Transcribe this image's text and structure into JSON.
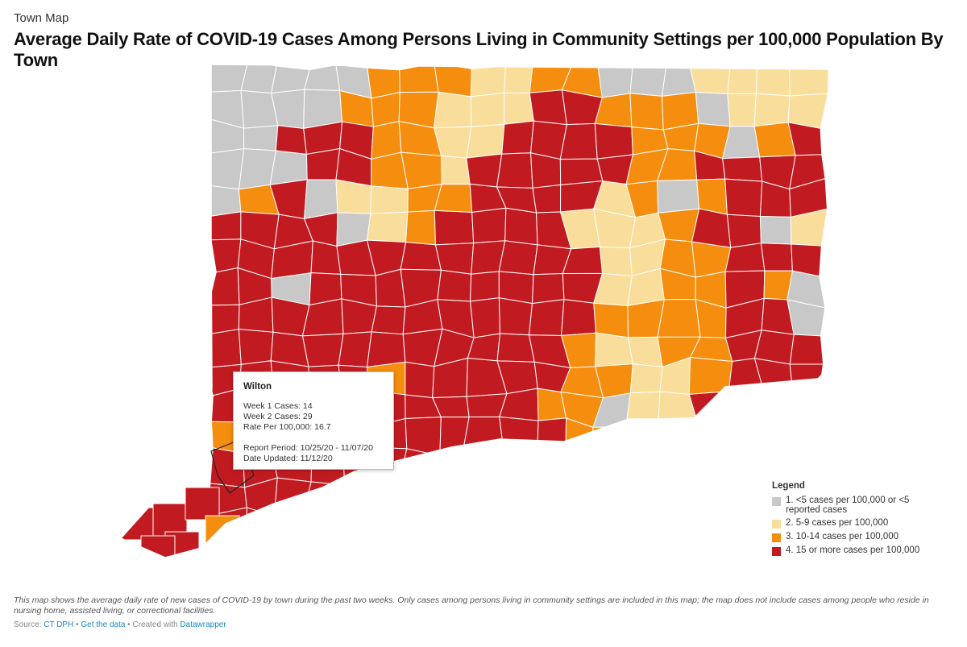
{
  "header": {
    "eyebrow": "Town Map",
    "title": "Average Daily Rate of COVID-19 Cases Among Persons Living in Community Settings per 100,000 Population By Town"
  },
  "colors": {
    "cat1": "#c8c8c8",
    "cat2": "#f9dd9a",
    "cat3": "#f58d0e",
    "cat4": "#c11b21",
    "border": "#ffffff",
    "link": "#1a8bbf"
  },
  "tooltip": {
    "town": "Wilton",
    "week1": "Week 1 Cases: 14",
    "week2": "Week 2 Cases: 29",
    "rate": "Rate Per 100,000: 16.7",
    "period": "Report Period: 10/25/20 - 11/07/20",
    "updated": "Date Updated: 11/12/20"
  },
  "legend": {
    "title": "Legend",
    "items": [
      {
        "label": "1. <5 cases per 100,000 or <5 reported cases",
        "color": "#c8c8c8"
      },
      {
        "label": "2. 5-9 cases per 100,000",
        "color": "#f9dd9a"
      },
      {
        "label": "3. 10-14 cases per 100,000",
        "color": "#f58d0e"
      },
      {
        "label": "4. 15 or more cases per 100,000",
        "color": "#c11b21"
      }
    ]
  },
  "footer": {
    "caption": "This map shows the average daily rate of new cases of COVID-19 by town during the past two weeks. Only cases among persons living in community settings are included in this map; the map does not include cases among people who reside in nursing home, assisted living, or correctional facilities.",
    "source_label": "Source:",
    "source_name": "CT DPH",
    "sep1": "•",
    "get_data": "Get the data",
    "sep2": "• Created with",
    "datawrapper": "Datawrapper"
  }
}
